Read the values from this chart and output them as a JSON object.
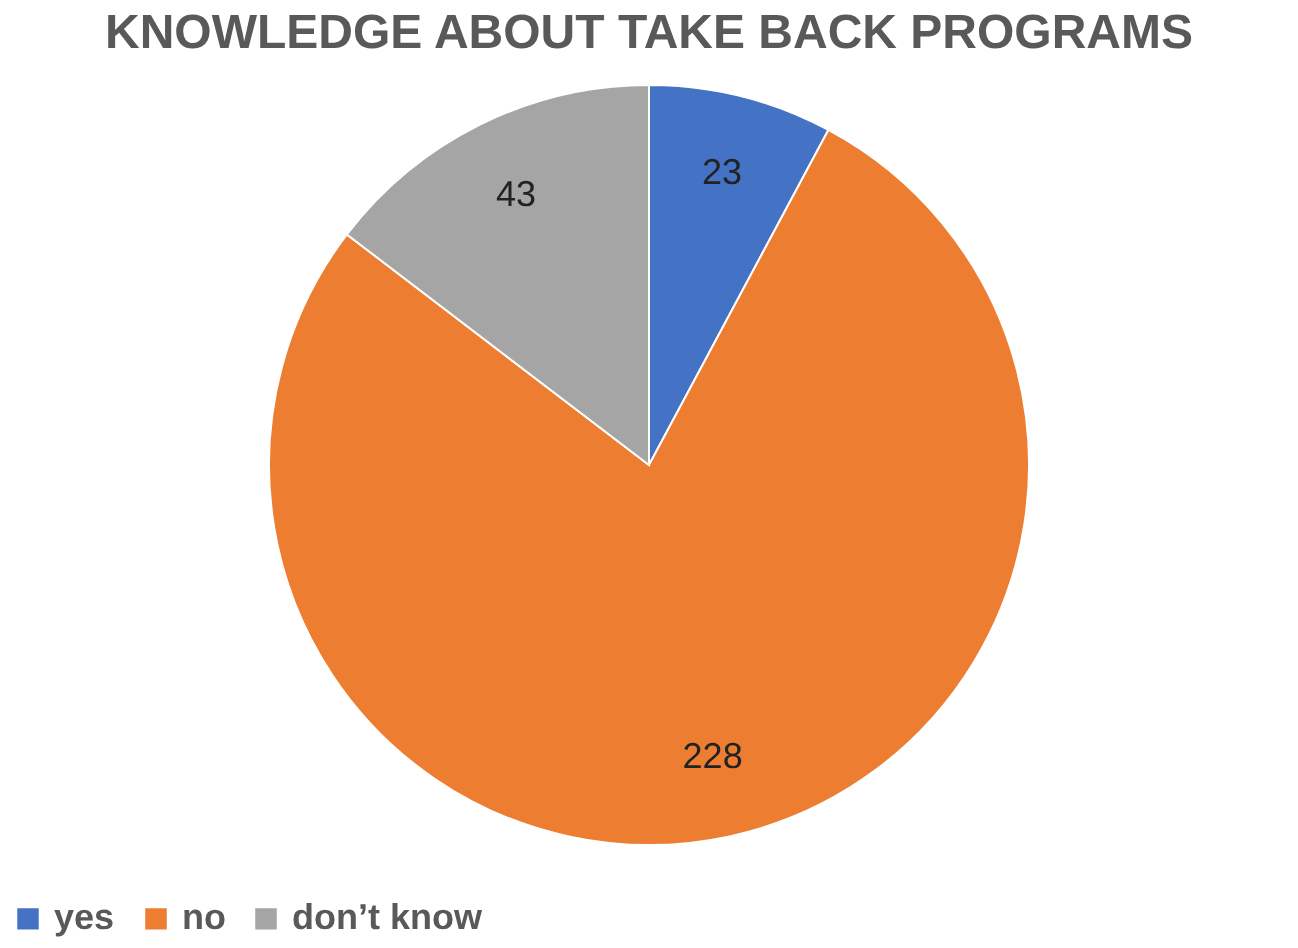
{
  "chart_data": {
    "type": "pie",
    "title": "KNOWLEDGE ABOUT TAKE BACK PROGRAMS",
    "categories": [
      "yes",
      "no",
      "don’t know"
    ],
    "values": [
      23,
      228,
      43
    ],
    "colors": [
      "#4472c4",
      "#ed7d31",
      "#a5a5a5"
    ],
    "data_labels": true,
    "legend": "bottom"
  }
}
